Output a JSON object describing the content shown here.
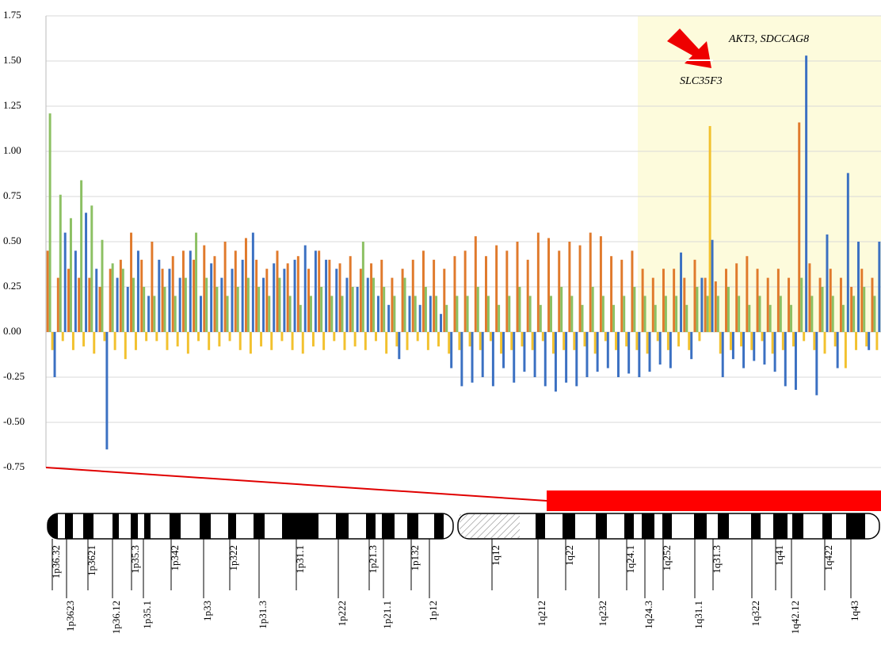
{
  "chart_data": {
    "type": "bar",
    "ylim": [
      -0.75,
      1.75
    ],
    "yticks": [
      -0.75,
      {
        "value": -0.5,
        "label": "-0.50"
      },
      -0.25,
      {
        "value": 0,
        "label": "0.00"
      },
      0.25,
      {
        "value": 0.5,
        "label": "0.50"
      },
      0.75,
      {
        "value": 1,
        "label": "1.00"
      },
      1.25,
      {
        "value": 1.5,
        "label": "1.50"
      },
      1.75
    ],
    "grid": true,
    "series": [
      {
        "color": "#e07a2c",
        "values": [
          0.45,
          0.3,
          0.35,
          0.3,
          0.3,
          0.25,
          0.35,
          0.4,
          0.55,
          0.4,
          0.5,
          0.35,
          0.42,
          0.45,
          0.4,
          0.48,
          0.42,
          0.5,
          0.45,
          0.52,
          0.4,
          0.35,
          0.45,
          0.38,
          0.42,
          0.35,
          0.45,
          0.4,
          0.38,
          0.42,
          0.35,
          0.38,
          0.4,
          0.3,
          0.35,
          0.4,
          0.45,
          0.4,
          0.35,
          0.42,
          0.45,
          0.53,
          0.42,
          0.48,
          0.45,
          0.5,
          0.4,
          0.55,
          0.52,
          0.45,
          0.5,
          0.48,
          0.55,
          0.53,
          0.42,
          0.4,
          0.45,
          0.35,
          0.3,
          0.35,
          0.35,
          0.3,
          0.4,
          0.3,
          0.28,
          0.35,
          0.38,
          0.42,
          0.35,
          0.3,
          0.35,
          0.3,
          1.16,
          0.38,
          0.3,
          0.35,
          0.3,
          0.25,
          0.35,
          0.3
        ]
      },
      {
        "color": "#8cc063",
        "values": [
          1.21,
          0.76,
          0.63,
          0.84,
          0.7,
          0.51,
          0.38,
          0.35,
          0.3,
          0.25,
          0.2,
          0.25,
          0.2,
          0.3,
          0.55,
          0.3,
          0.25,
          0.2,
          0.25,
          0.3,
          0.25,
          0.2,
          0.3,
          0.2,
          0.15,
          0.2,
          0.25,
          0.2,
          0.2,
          0.25,
          0.5,
          0.3,
          0.25,
          0.2,
          0.3,
          0.2,
          0.25,
          0.2,
          0.15,
          0.2,
          0.2,
          0.25,
          0.2,
          0.15,
          0.2,
          0.25,
          0.2,
          0.15,
          0.2,
          0.25,
          0.2,
          0.15,
          0.25,
          0.2,
          0.15,
          0.2,
          0.25,
          0.2,
          0.15,
          0.2,
          0.2,
          0.15,
          0.25,
          0.2,
          0.2,
          0.25,
          0.2,
          0.15,
          0.2,
          0.15,
          0.2,
          0.15,
          0.3,
          0.2,
          0.25,
          0.2,
          0.15,
          0.2,
          0.25,
          0.2
        ]
      },
      {
        "color": "#f2c12e",
        "values": [
          -0.1,
          -0.05,
          -0.1,
          -0.08,
          -0.12,
          -0.05,
          -0.1,
          -0.15,
          -0.1,
          -0.05,
          -0.05,
          -0.1,
          -0.08,
          -0.12,
          -0.05,
          -0.1,
          -0.08,
          -0.05,
          -0.1,
          -0.12,
          -0.08,
          -0.1,
          -0.05,
          -0.1,
          -0.12,
          -0.08,
          -0.1,
          -0.05,
          -0.1,
          -0.08,
          -0.1,
          -0.05,
          -0.12,
          -0.08,
          -0.1,
          -0.05,
          -0.1,
          -0.08,
          -0.12,
          -0.1,
          -0.08,
          -0.1,
          -0.05,
          -0.12,
          -0.1,
          -0.08,
          -0.1,
          -0.05,
          -0.12,
          -0.1,
          -0.1,
          -0.08,
          -0.12,
          -0.05,
          -0.1,
          -0.08,
          -0.1,
          -0.12,
          -0.05,
          -0.1,
          -0.08,
          -0.1,
          -0.05,
          1.14,
          -0.12,
          -0.1,
          -0.08,
          -0.1,
          -0.05,
          -0.12,
          -0.1,
          -0.08,
          -0.05,
          -0.1,
          -0.12,
          -0.08,
          -0.2,
          -0.1,
          -0.08,
          -0.1
        ]
      },
      {
        "color": "#3b70c2",
        "values": [
          -0.25,
          0.55,
          0.45,
          0.66,
          0.35,
          -0.65,
          0.3,
          0.25,
          0.45,
          0.2,
          0.4,
          0.35,
          0.3,
          0.45,
          0.2,
          0.38,
          0.3,
          0.35,
          0.4,
          0.55,
          0.3,
          0.38,
          0.35,
          0.4,
          0.48,
          0.45,
          0.4,
          0.35,
          0.3,
          0.25,
          0.3,
          0.2,
          0.15,
          -0.15,
          0.2,
          0.15,
          0.2,
          0.1,
          -0.2,
          -0.3,
          -0.28,
          -0.25,
          -0.3,
          -0.2,
          -0.28,
          -0.22,
          -0.25,
          -0.3,
          -0.33,
          -0.28,
          -0.3,
          -0.25,
          -0.22,
          -0.2,
          -0.25,
          -0.23,
          -0.25,
          -0.22,
          -0.18,
          -0.2,
          0.44,
          -0.15,
          0.3,
          0.51,
          -0.25,
          -0.15,
          -0.2,
          -0.16,
          -0.18,
          -0.22,
          -0.3,
          -0.32,
          1.53,
          -0.35,
          0.54,
          -0.2,
          0.88,
          0.5,
          -0.1,
          0.5
        ]
      }
    ],
    "annotations": [
      "AKT3, SDCCAG8",
      "SLC35F3"
    ]
  },
  "ideogram": {
    "upper_labels": [
      "1p36.32",
      "1p3621",
      "1p35.3",
      "1p342",
      "1p322",
      "1p31.1",
      "1p21.3",
      "1p132",
      "1q12",
      "1q22",
      "1q24.1",
      "1q252",
      "1q31.3",
      "1q41",
      "1q422"
    ],
    "lower_labels": [
      "1p3623",
      "1p36.12",
      "1p35.1",
      "1p33",
      "1p31.3",
      "1p222",
      "1p21.1",
      "1p12",
      "1q212",
      "1q232",
      "1q24.3",
      "1q31.1",
      "1q322",
      "1q42.12",
      "1q43"
    ]
  }
}
